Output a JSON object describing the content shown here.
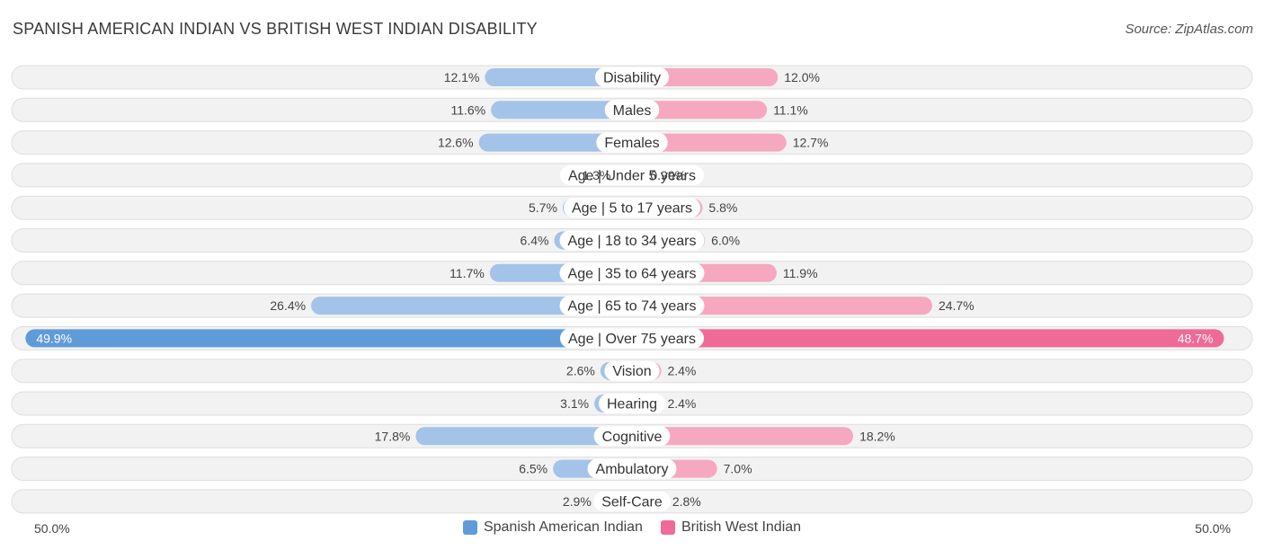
{
  "title": "SPANISH AMERICAN INDIAN VS BRITISH WEST INDIAN DISABILITY",
  "source": "Source: ZipAtlas.com",
  "colors": {
    "left_bar": "#a4c3e8",
    "left_bar_strong": "#5f9bd9",
    "right_bar": "#f6a8c0",
    "right_bar_strong": "#ef6a96",
    "row_bg": "#f2f2f2",
    "row_border": "#dedede"
  },
  "legend": {
    "left": "Spanish American Indian",
    "right": "British West Indian"
  },
  "axis": {
    "left_label": "50.0%",
    "right_label": "50.0%"
  },
  "chart_data": {
    "type": "bar",
    "orientation": "horizontal-diverging",
    "xlim": [
      0,
      50
    ],
    "categories": [
      "Disability",
      "Males",
      "Females",
      "Age | Under 5 years",
      "Age | 5 to 17 years",
      "Age | 18 to 34 years",
      "Age | 35 to 64 years",
      "Age | 65 to 74 years",
      "Age | Over 75 years",
      "Vision",
      "Hearing",
      "Cognitive",
      "Ambulatory",
      "Self-Care"
    ],
    "series": [
      {
        "name": "Spanish American Indian",
        "values": [
          12.1,
          11.6,
          12.6,
          1.3,
          5.7,
          6.4,
          11.7,
          26.4,
          49.9,
          2.6,
          3.1,
          17.8,
          6.5,
          2.9
        ],
        "labels": [
          "12.1%",
          "11.6%",
          "12.6%",
          "1.3%",
          "5.7%",
          "6.4%",
          "11.7%",
          "26.4%",
          "49.9%",
          "2.6%",
          "3.1%",
          "17.8%",
          "6.5%",
          "2.9%"
        ]
      },
      {
        "name": "British West Indian",
        "values": [
          12.0,
          11.1,
          12.7,
          0.99,
          5.8,
          6.0,
          11.9,
          24.7,
          48.7,
          2.4,
          2.4,
          18.2,
          7.0,
          2.8
        ],
        "labels": [
          "12.0%",
          "11.1%",
          "12.7%",
          "0.99%",
          "5.8%",
          "6.0%",
          "11.9%",
          "24.7%",
          "48.7%",
          "2.4%",
          "2.4%",
          "18.2%",
          "7.0%",
          "2.8%"
        ]
      }
    ]
  }
}
